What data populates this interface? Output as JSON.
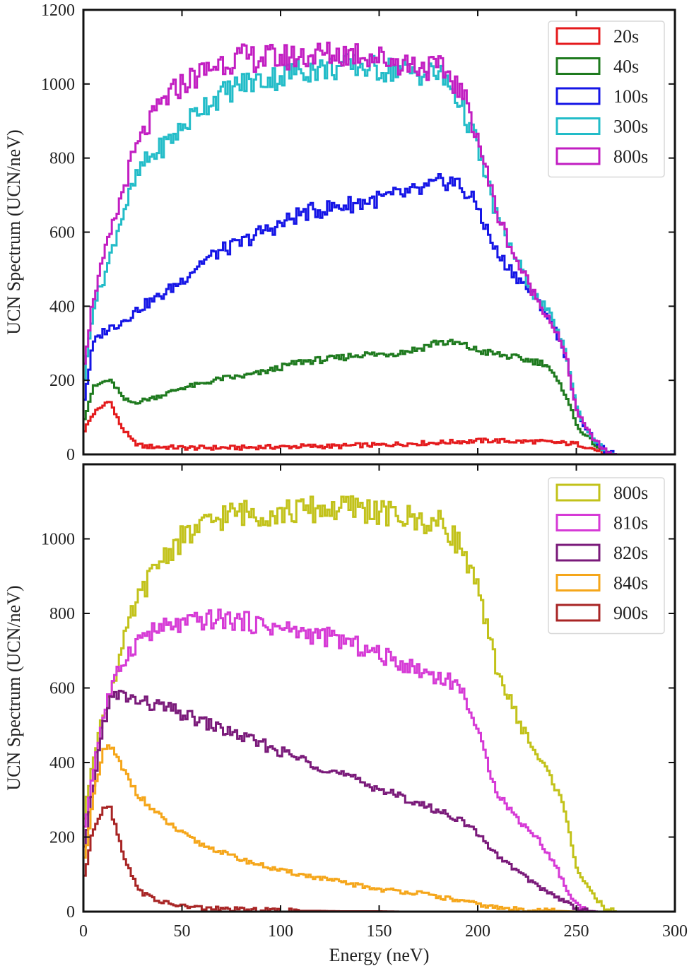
{
  "chart_data": [
    {
      "type": "line",
      "style": "step-histogram",
      "title": "",
      "xlabel": "",
      "ylabel": "UCN Spectrum (UCN/neV)",
      "xlim": [
        0,
        300
      ],
      "ylim": [
        0,
        1200
      ],
      "xticks": [
        0,
        50,
        100,
        150,
        200,
        250,
        300
      ],
      "yticks": [
        0,
        200,
        400,
        600,
        800,
        1000,
        1200
      ],
      "show_x_tick_labels": false,
      "legend_position": "top-right",
      "x": [
        0,
        5,
        10,
        13,
        17,
        20,
        25,
        30,
        40,
        50,
        60,
        70,
        80,
        90,
        100,
        110,
        120,
        130,
        140,
        150,
        160,
        170,
        180,
        185,
        190,
        195,
        200,
        205,
        210,
        220,
        230,
        235,
        240,
        245,
        250,
        255,
        260,
        265,
        270
      ],
      "series": [
        {
          "name": "20s",
          "color": "#e41a1c",
          "values": [
            60,
            110,
            130,
            150,
            100,
            70,
            35,
            22,
            20,
            18,
            18,
            18,
            18,
            20,
            20,
            22,
            22,
            22,
            25,
            25,
            28,
            30,
            32,
            33,
            35,
            35,
            37,
            37,
            37,
            35,
            35,
            33,
            32,
            30,
            28,
            22,
            12,
            3,
            0
          ]
        },
        {
          "name": "40s",
          "color": "#1e7a1e",
          "values": [
            90,
            180,
            195,
            200,
            180,
            150,
            140,
            145,
            160,
            180,
            190,
            205,
            210,
            220,
            235,
            250,
            255,
            260,
            270,
            270,
            275,
            285,
            305,
            300,
            300,
            290,
            280,
            275,
            270,
            260,
            250,
            245,
            200,
            160,
            80,
            50,
            25,
            5,
            0
          ]
        },
        {
          "name": "100s",
          "color": "#1515e6",
          "values": [
            130,
            300,
            330,
            340,
            350,
            360,
            380,
            400,
            430,
            470,
            520,
            550,
            570,
            600,
            620,
            650,
            660,
            670,
            680,
            690,
            700,
            710,
            730,
            740,
            730,
            700,
            670,
            600,
            540,
            480,
            420,
            380,
            330,
            260,
            120,
            70,
            35,
            8,
            0
          ]
        },
        {
          "name": "300s",
          "color": "#22bcc8",
          "values": [
            180,
            400,
            470,
            520,
            600,
            650,
            720,
            780,
            830,
            880,
            940,
            970,
            1000,
            1010,
            1020,
            1040,
            1040,
            1045,
            1050,
            1040,
            1040,
            1030,
            1030,
            1000,
            960,
            900,
            830,
            730,
            640,
            520,
            420,
            390,
            340,
            270,
            130,
            70,
            35,
            8,
            0
          ]
        },
        {
          "name": "800s",
          "color": "#c21ec2",
          "values": [
            230,
            420,
            520,
            580,
            650,
            710,
            800,
            860,
            950,
            1000,
            1030,
            1060,
            1070,
            1070,
            1070,
            1075,
            1080,
            1080,
            1085,
            1070,
            1060,
            1050,
            1040,
            1030,
            990,
            940,
            860,
            750,
            650,
            520,
            420,
            380,
            330,
            260,
            120,
            70,
            35,
            8,
            0
          ]
        }
      ]
    },
    {
      "type": "line",
      "style": "step-histogram",
      "title": "",
      "xlabel": "Energy (neV)",
      "ylabel": "UCN Spectrum (UCN/neV)",
      "xlim": [
        0,
        300
      ],
      "ylim": [
        0,
        1200
      ],
      "xticks": [
        0,
        50,
        100,
        150,
        200,
        250,
        300
      ],
      "yticks": [
        0,
        200,
        400,
        600,
        800,
        1000
      ],
      "show_x_tick_labels": true,
      "legend_position": "top-right",
      "x": [
        0,
        5,
        10,
        13,
        17,
        20,
        25,
        30,
        40,
        50,
        60,
        70,
        80,
        90,
        100,
        110,
        120,
        130,
        140,
        150,
        160,
        170,
        180,
        185,
        190,
        195,
        200,
        205,
        210,
        220,
        230,
        235,
        240,
        245,
        250,
        255,
        260,
        265,
        270
      ],
      "series": [
        {
          "name": "800s",
          "color": "#c2c21a",
          "values": [
            230,
            420,
            520,
            580,
            650,
            710,
            800,
            860,
            950,
            1000,
            1030,
            1060,
            1070,
            1070,
            1070,
            1075,
            1080,
            1080,
            1085,
            1070,
            1060,
            1050,
            1040,
            1030,
            990,
            940,
            860,
            750,
            650,
            520,
            420,
            380,
            330,
            260,
            120,
            70,
            35,
            8,
            0
          ]
        },
        {
          "name": "810s",
          "color": "#d63ad6",
          "values": [
            200,
            380,
            520,
            580,
            630,
            670,
            710,
            740,
            760,
            770,
            780,
            785,
            780,
            770,
            760,
            750,
            740,
            730,
            710,
            690,
            670,
            650,
            630,
            620,
            610,
            560,
            480,
            400,
            320,
            250,
            200,
            160,
            120,
            60,
            20,
            5,
            0,
            0,
            0
          ]
        },
        {
          "name": "820s",
          "color": "#7a1a7a",
          "values": [
            150,
            330,
            500,
            560,
            580,
            580,
            570,
            560,
            550,
            530,
            510,
            490,
            470,
            450,
            430,
            410,
            390,
            370,
            350,
            330,
            310,
            290,
            270,
            260,
            250,
            230,
            210,
            180,
            150,
            110,
            70,
            55,
            40,
            25,
            10,
            3,
            0,
            0,
            0
          ]
        },
        {
          "name": "840s",
          "color": "#f5a61a",
          "values": [
            120,
            300,
            420,
            450,
            410,
            380,
            340,
            300,
            250,
            210,
            180,
            160,
            140,
            125,
            110,
            100,
            90,
            80,
            70,
            60,
            55,
            50,
            40,
            35,
            30,
            25,
            20,
            15,
            10,
            6,
            4,
            3,
            2,
            1,
            0,
            0,
            0,
            0,
            0
          ]
        },
        {
          "name": "900s",
          "color": "#a82525",
          "values": [
            80,
            220,
            280,
            290,
            220,
            160,
            90,
            50,
            25,
            15,
            10,
            7,
            5,
            4,
            3,
            2,
            2,
            1,
            1,
            1,
            0,
            0,
            0,
            0,
            0,
            0,
            0,
            0,
            0,
            0,
            0,
            0,
            0,
            0,
            0,
            0,
            0,
            0,
            0
          ]
        }
      ]
    }
  ]
}
